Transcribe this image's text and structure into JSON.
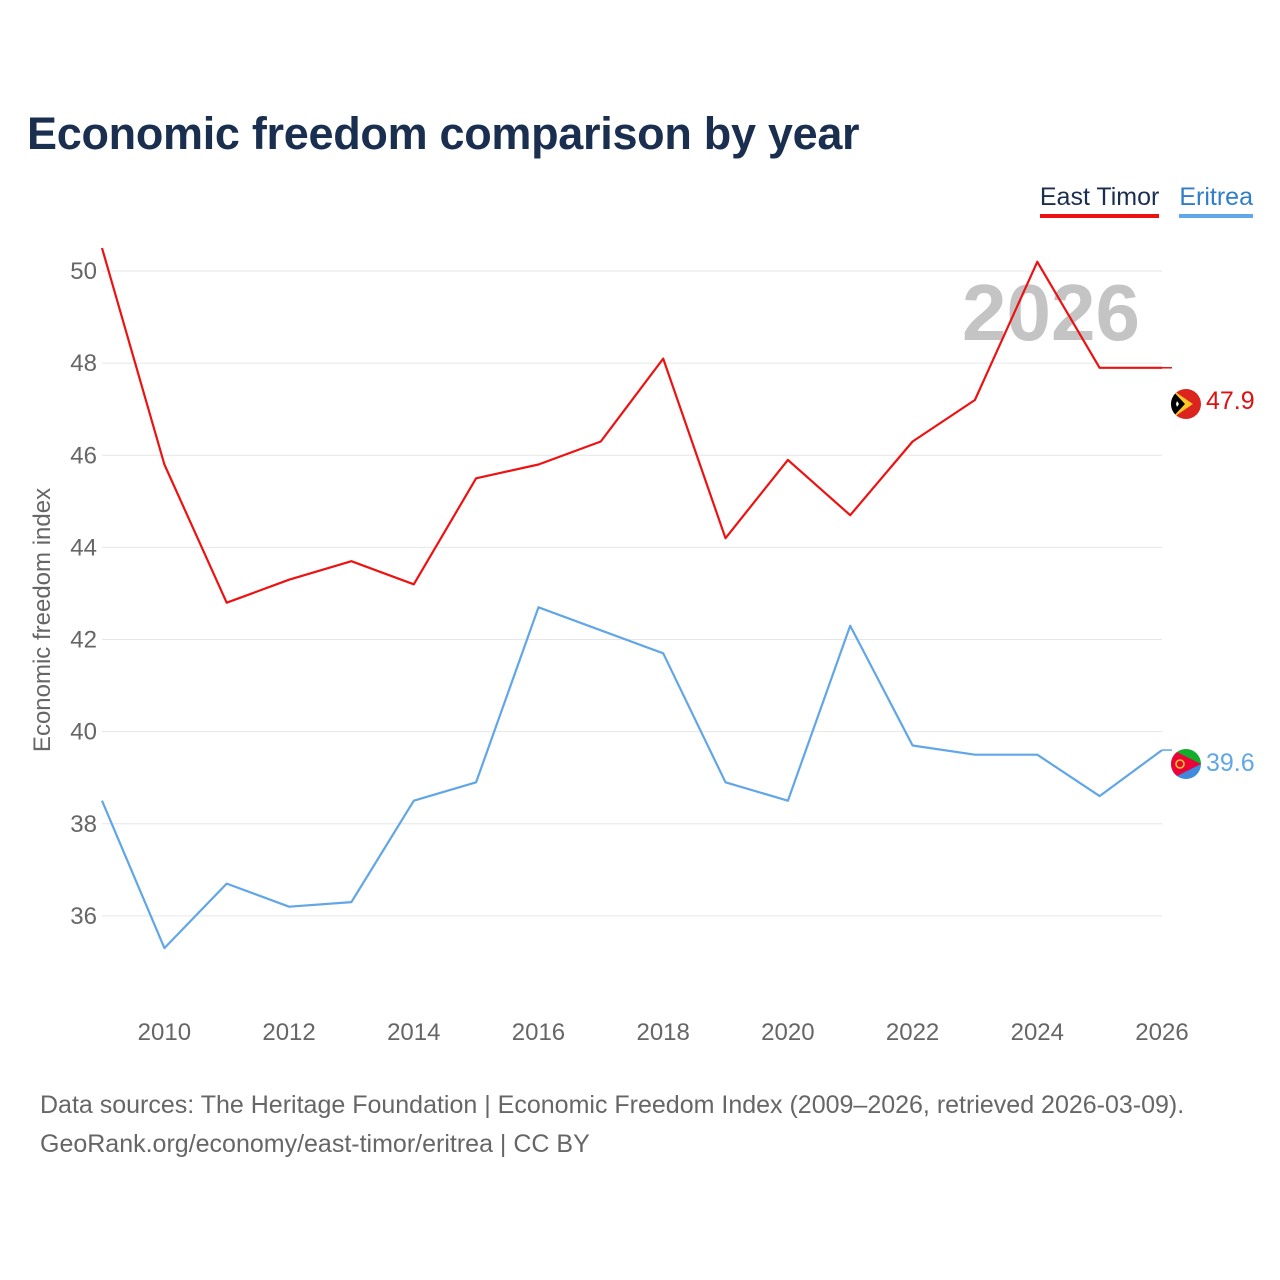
{
  "title": "Economic freedom comparison by year",
  "legend": [
    {
      "name": "East Timor",
      "color": "#ee1111"
    },
    {
      "name": "Eritrea",
      "color": "#61a6e6"
    }
  ],
  "year_watermark": "2026",
  "footer": {
    "line1": "Data sources: The Heritage Foundation | Economic Freedom Index (2009–2026, retrieved 2026-03-09).",
    "line2": "GeoRank.org/economy/east-timor/eritrea | CC BY"
  },
  "chart_data": {
    "type": "line",
    "title": "Economic freedom comparison by year",
    "xlabel": "",
    "ylabel": "Economic freedom index",
    "x": [
      2009,
      2010,
      2011,
      2012,
      2013,
      2014,
      2015,
      2016,
      2017,
      2018,
      2019,
      2020,
      2021,
      2022,
      2023,
      2024,
      2025,
      2026
    ],
    "xlim": [
      2009,
      2026
    ],
    "ylim": [
      34,
      51
    ],
    "xticks": [
      2010,
      2012,
      2014,
      2016,
      2018,
      2020,
      2022,
      2024,
      2026
    ],
    "yticks": [
      36,
      38,
      40,
      42,
      44,
      46,
      48,
      50
    ],
    "grid": true,
    "legend_position": "top-right",
    "series": [
      {
        "name": "East Timor",
        "color": "#ee1111",
        "label_color": "#dd1111",
        "end_label": "47.9",
        "values": [
          50.5,
          45.8,
          42.8,
          43.3,
          43.7,
          43.2,
          45.5,
          45.8,
          46.3,
          48.1,
          44.2,
          45.9,
          44.7,
          46.3,
          47.2,
          50.2,
          47.9,
          47.9
        ]
      },
      {
        "name": "Eritrea",
        "color": "#61a6e6",
        "label_color": "#61a6e6",
        "end_label": "39.6",
        "values": [
          38.5,
          35.3,
          36.7,
          36.2,
          36.3,
          38.5,
          38.9,
          42.7,
          42.2,
          41.7,
          38.9,
          38.5,
          42.3,
          39.7,
          39.5,
          39.5,
          38.6,
          39.6
        ]
      }
    ]
  }
}
